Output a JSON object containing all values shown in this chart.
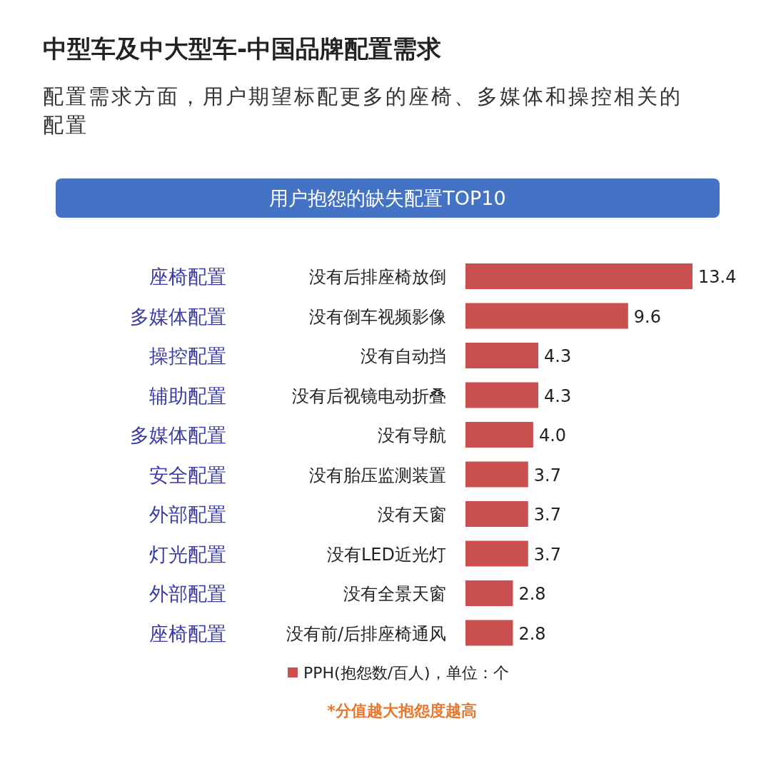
{
  "chart_data": {
    "type": "bar",
    "orientation": "horizontal",
    "title": "中型车及中大型车-中国品牌配置需求",
    "subtitle": "配置需求方面，用户期望标配更多的座椅、多媒体和操控相关的配置",
    "categories": [
      "没有后排座椅放倒",
      "没有倒车视频影像",
      "没有自动挡",
      "没有后视镜电动折叠",
      "没有导航",
      "没有胎压监测装置",
      "没有天窗",
      "没有LED近光灯",
      "没有全景天窗",
      "没有前/后排座椅通风"
    ],
    "series": [
      {
        "name": "PPH(抱怨数/百人)，单位：个",
        "color": "#c9504f",
        "values": [
          13.4,
          9.6,
          4.3,
          4.3,
          4.0,
          3.7,
          3.7,
          3.7,
          2.8,
          2.8
        ],
        "value_labels": [
          "13.4",
          "9.6",
          "4.3",
          "4.3",
          "4.0",
          "3.7",
          "3.7",
          "3.7",
          "2.8",
          "2.8"
        ]
      }
    ],
    "legend": "bottom",
    "annotations": [
      "用户抱怨的缺失配置TOP10",
      "*分值越大抱怨度越高",
      "座椅配置",
      "多媒体配置",
      "操控配置",
      "辅助配置",
      "多媒体配置",
      "安全配置",
      "外部配置",
      "灯光配置",
      "外部配置",
      "座椅配置"
    ]
  }
}
